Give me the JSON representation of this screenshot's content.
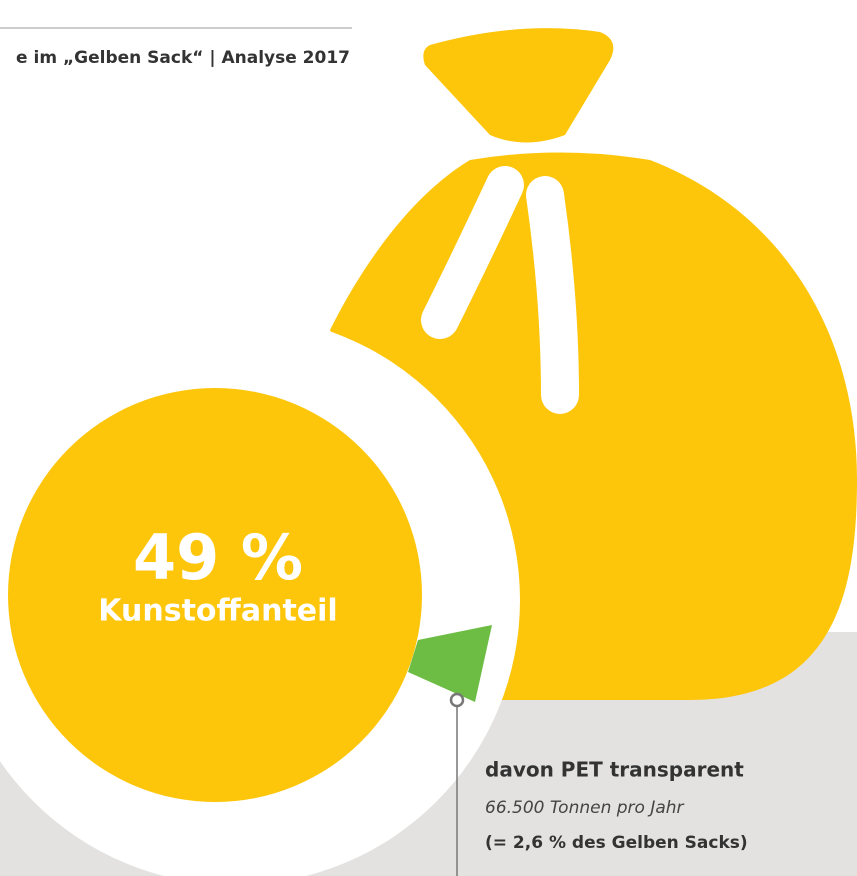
{
  "header": {
    "title": "e im „Gelben Sack“ | Analyse 2017"
  },
  "highlight": {
    "value": "49 %",
    "label": "Kunstoffanteil"
  },
  "callout": {
    "title": "davon PET transparent",
    "detail": "66.500 Tonnen pro Jahr",
    "share": "(= 2,6 % des Gelben Sacks)"
  }
}
